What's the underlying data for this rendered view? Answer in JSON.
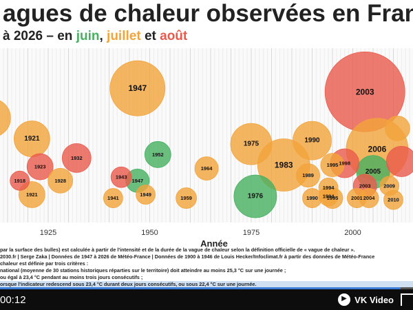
{
  "title": "agues de chaleur observées en Franc",
  "subtitle": {
    "prefix": "à 2026 – en ",
    "juin": "juin",
    "sep": ", ",
    "juillet": "juillet",
    "and": " et ",
    "aout": "août"
  },
  "colors": {
    "juin": "#46b060",
    "juillet": "#f2a43b",
    "aout": "#ea5a4c"
  },
  "chart_data": {
    "type": "scatter",
    "xlabel": "Année",
    "xlim": [
      1911,
      2027
    ],
    "xticks": [
      1925,
      1950,
      1975,
      2000
    ],
    "bubbles": [
      {
        "year": 1911,
        "label": "",
        "month": "juillet",
        "size": 28,
        "level": 0.4
      },
      {
        "year": 1909,
        "label": "",
        "month": "aout",
        "size": 22,
        "level": 0.58
      },
      {
        "year": 1918,
        "label": "1918",
        "month": "aout",
        "size": 14,
        "level": 0.76
      },
      {
        "year": 1921,
        "label": "1921",
        "month": "juillet",
        "size": 26,
        "level": 0.52
      },
      {
        "year": 1923,
        "label": "1923",
        "month": "aout",
        "size": 19,
        "level": 0.68
      },
      {
        "year": 1921,
        "label": "1921",
        "month": "juillet",
        "size": 19,
        "level": 0.84
      },
      {
        "year": 1928,
        "label": "1928",
        "month": "juillet",
        "size": 18,
        "level": 0.76
      },
      {
        "year": 1932,
        "label": "1932",
        "month": "aout",
        "size": 21,
        "level": 0.63
      },
      {
        "year": 1941,
        "label": "1941",
        "month": "juillet",
        "size": 14,
        "level": 0.86
      },
      {
        "year": 1943,
        "label": "1943",
        "month": "aout",
        "size": 15,
        "level": 0.74
      },
      {
        "year": 1947,
        "label": "1947",
        "month": "juin",
        "size": 17,
        "level": 0.76
      },
      {
        "year": 1947,
        "label": "1947",
        "month": "juillet",
        "size": 40,
        "level": 0.23
      },
      {
        "year": 1949,
        "label": "1949",
        "month": "juillet",
        "size": 14,
        "level": 0.84
      },
      {
        "year": 1952,
        "label": "1952",
        "month": "juin",
        "size": 19,
        "level": 0.61
      },
      {
        "year": 1959,
        "label": "1959",
        "month": "juillet",
        "size": 15,
        "level": 0.86
      },
      {
        "year": 1964,
        "label": "1964",
        "month": "juillet",
        "size": 17,
        "level": 0.69
      },
      {
        "year": 1975,
        "label": "1975",
        "month": "juillet",
        "size": 30,
        "level": 0.55
      },
      {
        "year": 1976,
        "label": "1976",
        "month": "juin",
        "size": 31,
        "level": 0.85
      },
      {
        "year": 1983,
        "label": "1983",
        "month": "juillet",
        "size": 38,
        "level": 0.67
      },
      {
        "year": 1989,
        "label": "1989",
        "month": "juillet",
        "size": 17,
        "level": 0.73
      },
      {
        "year": 1990,
        "label": "1990",
        "month": "juillet",
        "size": 28,
        "level": 0.53
      },
      {
        "year": 1990,
        "label": "1990",
        "month": "juillet",
        "size": 14,
        "level": 0.86
      },
      {
        "year": 1994,
        "label": "1994",
        "month": "juillet",
        "size": 14,
        "level": 0.8
      },
      {
        "year": 1994,
        "label": "1994",
        "month": "juillet",
        "size": 14,
        "level": 0.85
      },
      {
        "year": 1995,
        "label": "1995",
        "month": "juillet",
        "size": 17,
        "level": 0.67
      },
      {
        "year": 1995,
        "label": "1995",
        "month": "juillet",
        "size": 15,
        "level": 0.86
      },
      {
        "year": 1998,
        "label": "1998",
        "month": "aout",
        "size": 21,
        "level": 0.66
      },
      {
        "year": 2001,
        "label": "2001",
        "month": "juillet",
        "size": 14,
        "level": 0.86
      },
      {
        "year": 2003,
        "label": "2003",
        "month": "aout",
        "size": 58,
        "level": 0.25
      },
      {
        "year": 2003,
        "label": "2003",
        "month": "aout",
        "size": 17,
        "level": 0.79
      },
      {
        "year": 2004,
        "label": "2004",
        "month": "juillet",
        "size": 14,
        "level": 0.86
      },
      {
        "year": 2005,
        "label": "2005",
        "month": "juin",
        "size": 24,
        "level": 0.71
      },
      {
        "year": 2006,
        "label": "2006",
        "month": "juillet",
        "size": 45,
        "level": 0.58
      },
      {
        "year": 2009,
        "label": "2009",
        "month": "juillet",
        "size": 14,
        "level": 0.79
      },
      {
        "year": 2010,
        "label": "2010",
        "month": "juillet",
        "size": 14,
        "level": 0.87
      },
      {
        "year": 2011,
        "label": "",
        "month": "juillet",
        "size": 18,
        "level": 0.46
      },
      {
        "year": 2012,
        "label": "",
        "month": "aout",
        "size": 22,
        "level": 0.65
      }
    ]
  },
  "notes": [
    "par la surface des bulles) est calculée à partir de l'intensité et de la durée de la vague de chaleur selon la définition officielle de « vague de chaleur ».",
    "2030.fr | Serge Zaka | Données de 1947 à 2026 de Météo-France | Données de 1900 à 1946 de Louis Hecker/Infoclimat.fr à partir des données de Météo-France",
    "chaleur est définie par trois critères :",
    "national (moyenne de 30 stations historiques réparties sur le territoire) doit atteindre au moins 25,3 °C sur une journée ;",
    "ou égal à 23,4 °C pendant au moins trois jours consécutifs ;",
    "orsque l'indicateur redescend sous 23,4 °C durant deux jours consécutifs, ou sous 22,4 °C sur une journée."
  ],
  "player": {
    "time": "00:12",
    "brand": "VK Video",
    "progress": 0.97
  }
}
